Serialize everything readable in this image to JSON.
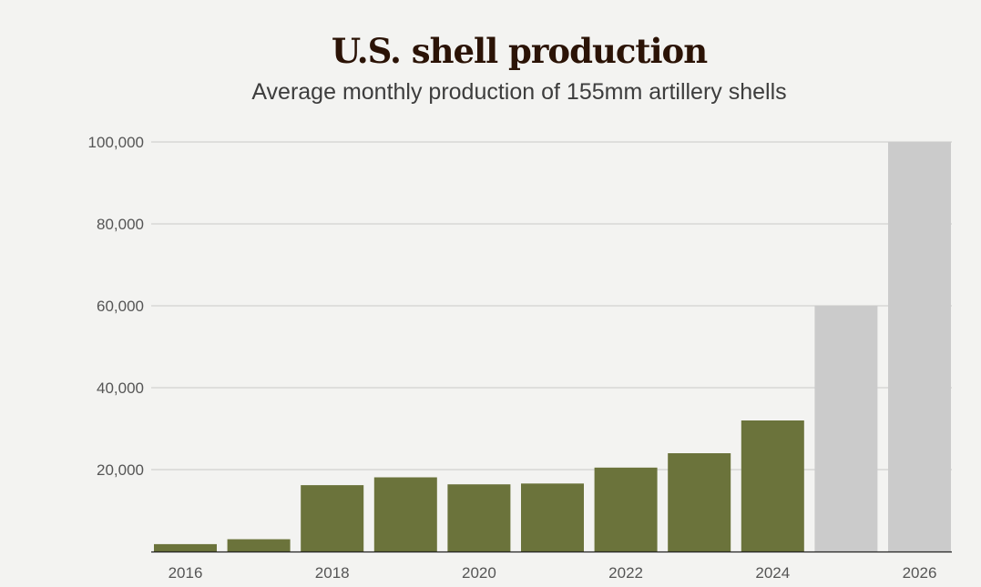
{
  "colors": {
    "background": "#f3f3f1",
    "actual": "#6b733b",
    "projected": "#cbcbcb",
    "grid": "#c8c8c8",
    "axis": "#222222",
    "title": "#2b1306",
    "subtitle": "#3d3d3d",
    "tick_text": "#555555"
  },
  "chart_data": {
    "type": "bar",
    "title": "U.S. shell production",
    "subtitle": "Average monthly production of 155mm artillery shells",
    "xlabel": "",
    "ylabel": "",
    "categories": [
      "2016",
      "2017",
      "2018",
      "2019",
      "2020",
      "2021",
      "2022",
      "2023",
      "2024",
      "2025",
      "2026"
    ],
    "values": [
      1800,
      3000,
      16200,
      18100,
      16400,
      16600,
      20500,
      24000,
      32000,
      60000,
      100000
    ],
    "bar_status": [
      "actual",
      "actual",
      "actual",
      "actual",
      "actual",
      "actual",
      "actual",
      "actual",
      "actual",
      "projected",
      "projected"
    ],
    "x_tick_labels": [
      "2016",
      "2018",
      "2020",
      "2022",
      "2024",
      "2026"
    ],
    "y_ticks": [
      20000,
      40000,
      60000,
      80000,
      100000
    ],
    "y_tick_labels": [
      "20,000",
      "40,000",
      "60,000",
      "80,000",
      "100,000"
    ],
    "ylim": [
      0,
      100000
    ],
    "grid": true,
    "legend": "none"
  }
}
